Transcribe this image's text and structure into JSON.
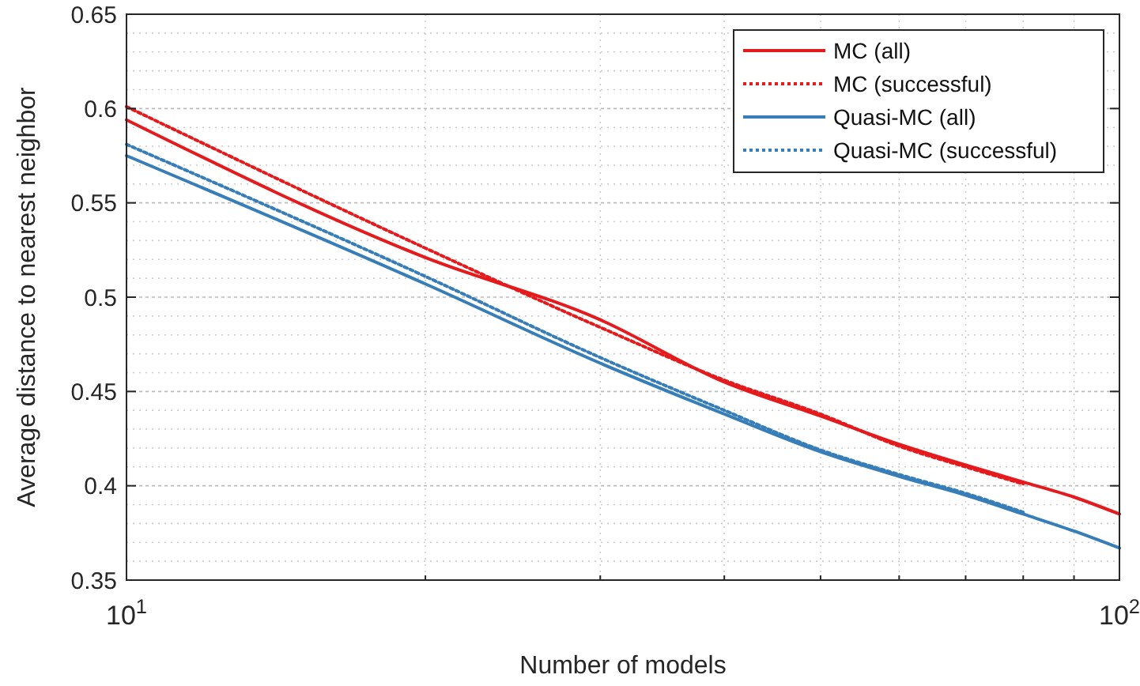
{
  "chart_data": {
    "type": "line",
    "xlabel": "Number of models",
    "ylabel": "Average distance to nearest neighbor",
    "x": [
      10,
      20,
      30,
      40,
      50,
      60,
      70,
      80,
      90,
      100
    ],
    "series": [
      {
        "name": "MC (all)",
        "color": "#e41a1c",
        "line_style": "solid",
        "values": [
          0.594,
          0.521,
          0.488,
          0.455,
          0.437,
          0.422,
          0.411,
          0.402,
          0.394,
          0.385
        ]
      },
      {
        "name": "MC (successful)",
        "color": "#e41a1c",
        "line_style": "dotted",
        "values": [
          0.601,
          0.526,
          0.484,
          0.456,
          0.438,
          0.421,
          0.41,
          0.401,
          null,
          null
        ]
      },
      {
        "name": "Quasi-MC (all)",
        "color": "#377eb8",
        "line_style": "solid",
        "values": [
          0.575,
          0.507,
          0.465,
          0.438,
          0.418,
          0.405,
          0.395,
          0.385,
          0.376,
          0.367
        ]
      },
      {
        "name": "Quasi-MC (successful)",
        "color": "#377eb8",
        "line_style": "dotted",
        "values": [
          0.581,
          0.511,
          0.468,
          0.44,
          0.419,
          0.406,
          0.396,
          0.386,
          null,
          null
        ]
      }
    ],
    "xlim": [
      10,
      100
    ],
    "xticks": [
      {
        "value": 10,
        "label": "10$^{1}$"
      },
      {
        "value": 100,
        "label": "10$^{2}$"
      }
    ],
    "ylim": [
      0.35,
      0.65
    ],
    "yticks": [
      0.35,
      0.4,
      0.45,
      0.5,
      0.55,
      0.6,
      0.65
    ],
    "log": "x",
    "grid": true,
    "legend": "top right",
    "marker": "none"
  }
}
